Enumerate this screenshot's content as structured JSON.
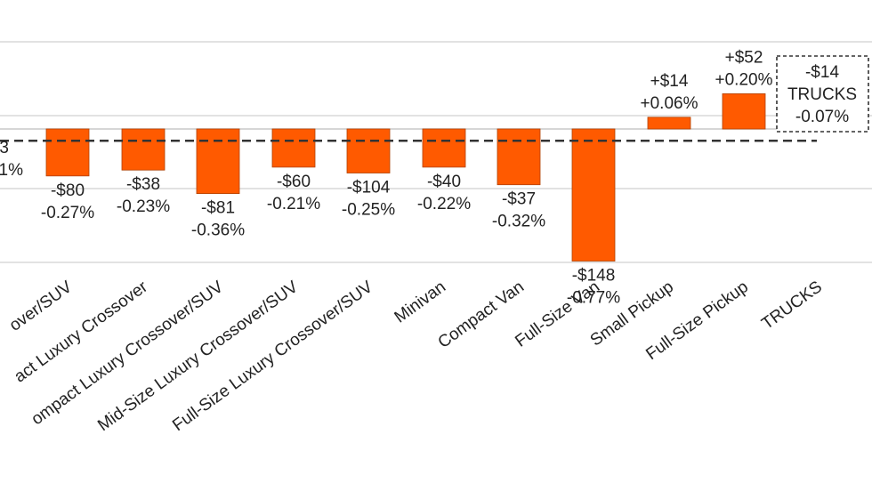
{
  "chart_data": {
    "type": "bar",
    "categories": [
      "Crossover/SUV",
      "Compact Luxury Crossover",
      "Compact Luxury Crossover/SUV",
      "Mid-Size Luxury Crossover/SUV",
      "Full-Size Luxury Crossover/SUV",
      "Minivan",
      "Compact Van",
      "Full-Size Van",
      "Small Pickup",
      "Full-Size Pickup",
      "TRUCKS"
    ],
    "category_labels": [
      "over/SUV",
      "act Luxury Crossover",
      "ompact Luxury Crossover/SUV",
      "Mid-Size Luxury Crossover/SUV",
      "Full-Size Luxury Crossover/SUV",
      "Minivan",
      "Compact Van",
      "Full-Size Van",
      "Small Pickup",
      "Full-Size Pickup",
      "TRUCKS"
    ],
    "values": [
      -80,
      -38,
      -81,
      -60,
      -104,
      -40,
      -37,
      -148,
      14,
      52,
      -14
    ],
    "percent_values": [
      -0.27,
      -0.23,
      -0.36,
      -0.21,
      -0.25,
      -0.22,
      -0.32,
      -0.77,
      0.06,
      0.2,
      -0.07
    ],
    "value_labels": [
      "-$80",
      "-$38",
      "-$81",
      "-$60",
      "-$104",
      "-$40",
      "-$37",
      "-$148",
      "+$14",
      "+$52",
      "-$14"
    ],
    "percent_labels": [
      "-0.27%",
      "-0.23%",
      "-0.36%",
      "-0.21%",
      "-0.25%",
      "-0.22%",
      "-0.32%",
      "-0.77%",
      "+0.06%",
      "+0.20%",
      "-0.07%"
    ],
    "visual_heights_pct": [
      -0.16,
      -0.14,
      -0.22,
      -0.13,
      -0.15,
      -0.13,
      -0.19,
      -0.45,
      0.04,
      0.12
    ],
    "total_category": "TRUCKS",
    "total_label_lines": [
      "-$14",
      "TRUCKS",
      "-0.07%"
    ],
    "partial_left_labels": [
      "3",
      "1%"
    ],
    "ylim": [
      -0.45,
      0.25
    ],
    "reference_line": -0.04,
    "grid": true,
    "colors": {
      "bar": "#ff5a00",
      "bar_edge": "#b04000",
      "reference_line": "#333333",
      "grid": "#d9d9d9",
      "text": "#222222"
    }
  }
}
